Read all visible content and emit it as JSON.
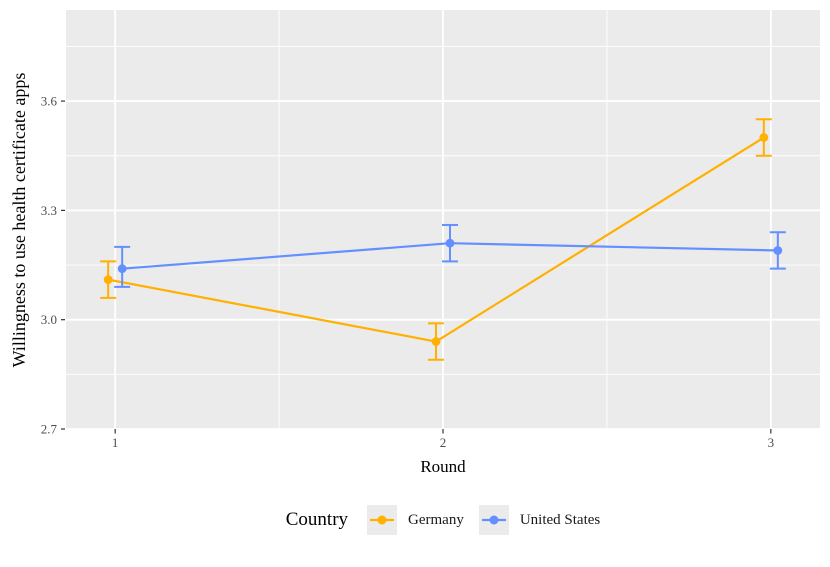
{
  "chart_data": {
    "type": "line",
    "title": "",
    "xlabel": "Round",
    "ylabel": "Willingness to use health certificate apps",
    "x": [
      1,
      2,
      3
    ],
    "xticks": [
      "1",
      "2",
      "3"
    ],
    "yticks": [
      2.7,
      3.0,
      3.3,
      3.6
    ],
    "xlim": [
      0.85,
      3.15
    ],
    "ylim": [
      2.7,
      3.85
    ],
    "grid": "white major and minor gridlines on gray panel",
    "legend": {
      "title": "Country",
      "position": "bottom"
    },
    "series": [
      {
        "name": "Germany",
        "color": "#FFB000",
        "values": [
          3.11,
          2.94,
          3.5
        ],
        "ci_low": [
          3.06,
          2.89,
          3.45
        ],
        "ci_high": [
          3.16,
          2.99,
          3.55
        ]
      },
      {
        "name": "United States",
        "color": "#648FFF",
        "values": [
          3.14,
          3.21,
          3.19
        ],
        "ci_low": [
          3.09,
          3.16,
          3.14
        ],
        "ci_high": [
          3.2,
          3.26,
          3.24
        ]
      }
    ],
    "colors": {
      "panel_background": "#EBEBEB",
      "gridline": "#FFFFFF",
      "tick_mark": "#333333",
      "tick_label": "#4D4D4D",
      "axis_title": "#000000",
      "legend_key_background": "#EBEBEB"
    }
  }
}
